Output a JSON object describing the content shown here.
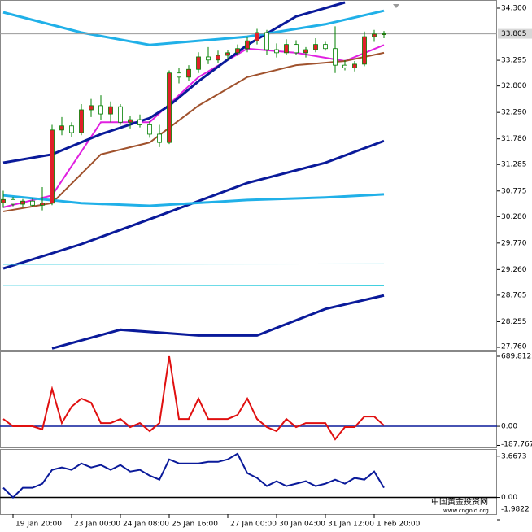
{
  "chart_data": [
    {
      "type": "candlestick",
      "categories": [
        null,
        "19 Jan 20:00",
        null,
        null,
        null,
        null,
        null,
        "23 Jan 00:00",
        null,
        null,
        null,
        null,
        "24 Jan 08:00",
        null,
        null,
        null,
        null,
        "25 Jan 16:00",
        null,
        null,
        null,
        null,
        null,
        "27 Jan 00:00",
        null,
        null,
        null,
        null,
        "30 Jan 04:00",
        null,
        null,
        null,
        null,
        "31 Jan 12:00",
        null,
        null,
        null,
        null,
        "1 Feb 20:00",
        null
      ],
      "open": [
        30.55,
        30.61,
        30.52,
        30.58,
        30.5,
        30.54,
        31.95,
        32.03,
        31.9,
        32.34,
        32.42,
        32.26,
        32.4,
        32.1,
        32.15,
        32.05,
        31.87,
        31.71,
        33.05,
        32.97,
        33.12,
        33.36,
        33.3,
        33.39,
        33.44,
        33.52,
        33.67,
        33.83,
        33.5,
        33.44,
        33.6,
        33.44,
        33.5,
        33.6,
        33.52,
        33.2,
        33.15,
        33.22,
        33.75,
        33.8
      ],
      "high": [
        30.78,
        30.66,
        30.62,
        30.64,
        30.85,
        32.05,
        32.2,
        32.1,
        32.45,
        32.55,
        32.62,
        32.5,
        32.45,
        32.22,
        32.25,
        32.12,
        32.05,
        33.1,
        33.15,
        33.2,
        33.45,
        33.55,
        33.48,
        33.5,
        33.6,
        33.75,
        33.9,
        33.88,
        33.62,
        33.7,
        33.68,
        33.55,
        33.72,
        33.65,
        33.95,
        33.3,
        33.28,
        33.85,
        33.88,
        33.86
      ],
      "low": [
        30.45,
        30.48,
        30.47,
        30.46,
        30.4,
        30.5,
        31.85,
        31.82,
        31.85,
        32.2,
        32.15,
        32.1,
        32.05,
        31.98,
        32.0,
        31.8,
        31.62,
        31.68,
        32.85,
        32.9,
        33.05,
        33.22,
        33.25,
        33.3,
        33.38,
        33.45,
        33.6,
        33.4,
        33.35,
        33.4,
        33.4,
        33.35,
        33.45,
        33.48,
        33.05,
        33.1,
        33.08,
        33.18,
        33.65,
        33.72
      ],
      "close": [
        30.61,
        30.52,
        30.58,
        30.5,
        30.54,
        31.95,
        32.03,
        31.9,
        32.34,
        32.42,
        32.26,
        32.4,
        32.1,
        32.15,
        32.05,
        31.87,
        31.71,
        33.05,
        32.97,
        33.12,
        33.36,
        33.3,
        33.39,
        33.44,
        33.52,
        33.67,
        33.83,
        33.5,
        33.44,
        33.6,
        33.44,
        33.5,
        33.6,
        33.52,
        33.2,
        33.15,
        33.22,
        33.75,
        33.8,
        33.805
      ],
      "up_color": "#e0202a",
      "down_color": "#ffffff",
      "wick_color": "#008000",
      "lines": [
        {
          "color": "#e020e0",
          "width": 2,
          "x": [
            0,
            5,
            10,
            15,
            20,
            25,
            30,
            35,
            39
          ],
          "values": [
            30.46,
            30.69,
            32.1,
            32.1,
            32.97,
            33.52,
            33.44,
            33.28,
            33.59
          ]
        },
        {
          "color": "#a0522d",
          "width": 2,
          "x": [
            0,
            5,
            10,
            15,
            20,
            25,
            30,
            35,
            39
          ],
          "values": [
            30.38,
            30.54,
            31.48,
            31.71,
            32.42,
            32.97,
            33.2,
            33.28,
            33.44
          ]
        },
        {
          "color": "#0a1a9a",
          "width": 3,
          "x": [
            0,
            5,
            10,
            15,
            17,
            20,
            25,
            30,
            35
          ],
          "values": [
            31.32,
            31.48,
            31.87,
            32.18,
            32.42,
            32.89,
            33.59,
            34.14,
            34.41
          ]
        },
        {
          "color": "#0a1a9a",
          "width": 3,
          "x": [
            0,
            8,
            16,
            25,
            33,
            39
          ],
          "values": [
            29.28,
            29.75,
            30.3,
            30.93,
            31.32,
            31.74
          ]
        },
        {
          "color": "#0a1a9a",
          "width": 3,
          "x": [
            5,
            12,
            20,
            26,
            33,
            39
          ],
          "values": [
            27.74,
            28.1,
            27.99,
            27.99,
            28.5,
            28.76
          ]
        },
        {
          "color": "#20b0e8",
          "width": 3,
          "x": [
            0,
            8,
            15,
            25,
            33,
            39
          ],
          "values": [
            34.22,
            33.83,
            33.59,
            33.75,
            33.99,
            34.25
          ]
        },
        {
          "color": "#20b0e8",
          "width": 3,
          "x": [
            0,
            8,
            15,
            25,
            33,
            39
          ],
          "values": [
            30.69,
            30.54,
            30.49,
            30.6,
            30.65,
            30.71
          ]
        },
        {
          "color": "#40d0e0",
          "width": 1,
          "x": [
            0,
            39
          ],
          "values": [
            29.36,
            29.37
          ]
        },
        {
          "color": "#40d0e0",
          "width": 1,
          "x": [
            0,
            39
          ],
          "values": [
            28.95,
            28.96
          ]
        }
      ],
      "current_price": 33.805,
      "ylim": [
        27.713,
        34.457
      ],
      "yticks": [
        {
          "value": 34.3,
          "label": "34.300"
        },
        33.295,
        {
          "value": 32.8,
          "label": "32.800"
        },
        {
          "value": 32.29,
          "label": "32.290"
        },
        {
          "value": 31.78,
          "label": "31.780"
        },
        31.285,
        30.775,
        {
          "value": 30.28,
          "label": "30.280"
        },
        {
          "value": 29.77,
          "label": "29.770"
        },
        {
          "value": 29.26,
          "label": "29.260"
        },
        28.765,
        28.255,
        {
          "value": 27.76,
          "label": "27.760"
        }
      ]
    },
    {
      "type": "line",
      "color": "#e01010",
      "values": [
        72,
        0,
        0,
        0,
        -30,
        369,
        32,
        193,
        273,
        233,
        32,
        32,
        72,
        -8,
        32,
        -48,
        32,
        690,
        72,
        72,
        273,
        72,
        72,
        72,
        112,
        273,
        72,
        -8,
        -48,
        72,
        -8,
        32,
        32,
        32,
        -128,
        -8,
        -8,
        96,
        96,
        8
      ],
      "ylim": [
        -208,
        738
      ],
      "yticks": [
        689.8125,
        {
          "value": 0,
          "label": "0.00"
        },
        -187.767
      ]
    },
    {
      "type": "line",
      "color": "#0a1a9a",
      "values": [
        0.86,
        0,
        0.86,
        0.86,
        1.22,
        2.45,
        2.66,
        2.45,
        3.02,
        2.66,
        2.88,
        2.45,
        2.88,
        2.3,
        2.45,
        1.94,
        1.58,
        3.38,
        3.02,
        3.02,
        3.02,
        3.16,
        3.16,
        3.38,
        3.88,
        2.16,
        1.73,
        1.01,
        1.44,
        1.01,
        1.22,
        1.44,
        1.01,
        1.22,
        1.58,
        1.22,
        1.73,
        1.58,
        2.3,
        0.86
      ],
      "ylim": [
        -1.9822,
        4.3
      ],
      "yticks": [
        3.6673,
        {
          "value": 0,
          "label": "0.00"
        },
        -1.9822
      ]
    }
  ],
  "watermark": {
    "name": "中国黄金投资网",
    "url": "www.cngold.org"
  }
}
